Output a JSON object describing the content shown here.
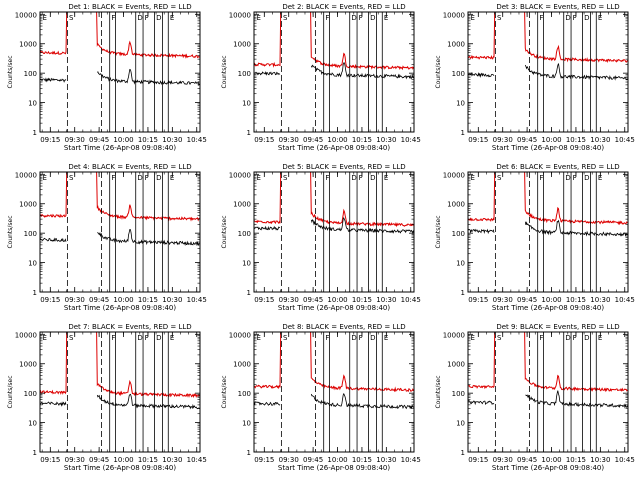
{
  "figure": {
    "x_tick_labels": [
      "09:15",
      "09:30",
      "09:45",
      "10:00",
      "10:15",
      "10:30",
      "10:45"
    ],
    "y_tick_labels": [
      "1",
      "10",
      "100",
      "1000",
      "10000"
    ],
    "xlabel": "Start Time (26-Apr-08 09:08:40)",
    "ylabel": "Counts/sec",
    "flags": [
      "E",
      "S",
      "F",
      "D",
      "F",
      "D",
      "E"
    ]
  },
  "colors": {
    "events": "#000000",
    "lld": "#dd0000",
    "axes": "#000000"
  },
  "chart_data": [
    {
      "type": "line",
      "title": "Det 1: BLACK = Events, RED = LLD",
      "xlabel": "Start Time (26-Apr-08 09:08:40)",
      "ylabel": "Counts/sec",
      "y_scale": "log",
      "ylim": [
        1,
        12000
      ],
      "xlim": [
        "09:08:40",
        "10:47:00"
      ],
      "series": [
        {
          "name": "Events",
          "color": "#000000",
          "baseline": 60,
          "peak_lld": 10000
        },
        {
          "name": "LLD",
          "color": "#dd0000",
          "baseline": 500,
          "peak": 10000
        }
      ]
    },
    {
      "type": "line",
      "title": "Det 2: BLACK = Events, RED = LLD",
      "xlabel": "Start Time (26-Apr-08 09:08:40)",
      "ylabel": "Counts/sec",
      "y_scale": "log",
      "ylim": [
        1,
        12000
      ],
      "xlim": [
        "09:08:40",
        "10:47:00"
      ],
      "series": [
        {
          "name": "Events",
          "color": "#000000",
          "baseline": 100
        },
        {
          "name": "LLD",
          "color": "#dd0000",
          "baseline": 200,
          "peak": 10000
        }
      ]
    },
    {
      "type": "line",
      "title": "Det 3: BLACK = Events, RED = LLD",
      "xlabel": "Start Time (26-Apr-08 09:08:40)",
      "ylabel": "Counts/sec",
      "y_scale": "log",
      "ylim": [
        1,
        12000
      ],
      "xlim": [
        "09:08:40",
        "10:47:00"
      ],
      "series": [
        {
          "name": "Events",
          "color": "#000000",
          "baseline": 90
        },
        {
          "name": "LLD",
          "color": "#dd0000",
          "baseline": 350,
          "peak": 10000
        }
      ]
    },
    {
      "type": "line",
      "title": "Det 4: BLACK = Events, RED = LLD",
      "xlabel": "Start Time (26-Apr-08 09:08:40)",
      "ylabel": "Counts/sec",
      "y_scale": "log",
      "ylim": [
        1,
        12000
      ],
      "xlim": [
        "09:08:40",
        "10:47:00"
      ],
      "series": [
        {
          "name": "Events",
          "color": "#000000",
          "baseline": 60
        },
        {
          "name": "LLD",
          "color": "#dd0000",
          "baseline": 400,
          "peak": 10000
        }
      ]
    },
    {
      "type": "line",
      "title": "Det 5: BLACK = Events, RED = LLD",
      "xlabel": "Start Time (26-Apr-08 09:08:40)",
      "ylabel": "Counts/sec",
      "y_scale": "log",
      "ylim": [
        1,
        12000
      ],
      "xlim": [
        "09:08:40",
        "10:47:00"
      ],
      "series": [
        {
          "name": "Events",
          "color": "#000000",
          "baseline": 150
        },
        {
          "name": "LLD",
          "color": "#dd0000",
          "baseline": 250,
          "peak": 10000
        }
      ]
    },
    {
      "type": "line",
      "title": "Det 6: BLACK = Events, RED = LLD",
      "xlabel": "Start Time (26-Apr-08 09:08:40)",
      "ylabel": "Counts/sec",
      "y_scale": "log",
      "ylim": [
        1,
        12000
      ],
      "xlim": [
        "09:08:40",
        "10:47:00"
      ],
      "series": [
        {
          "name": "Events",
          "color": "#000000",
          "baseline": 120
        },
        {
          "name": "LLD",
          "color": "#dd0000",
          "baseline": 300,
          "peak": 10000
        }
      ]
    },
    {
      "type": "line",
      "title": "Det 7: BLACK = Events, RED = LLD",
      "xlabel": "Start Time (26-Apr-08 09:08:40)",
      "ylabel": "Counts/sec",
      "y_scale": "log",
      "ylim": [
        1,
        12000
      ],
      "xlim": [
        "09:08:40",
        "10:47:00"
      ],
      "series": [
        {
          "name": "Events",
          "color": "#000000",
          "baseline": 45
        },
        {
          "name": "LLD",
          "color": "#dd0000",
          "baseline": 110,
          "peak": 10000
        }
      ]
    },
    {
      "type": "line",
      "title": "Det 8: BLACK = Events, RED = LLD",
      "xlabel": "Start Time (26-Apr-08 09:08:40)",
      "ylabel": "Counts/sec",
      "y_scale": "log",
      "ylim": [
        1,
        12000
      ],
      "xlim": [
        "09:08:40",
        "10:47:00"
      ],
      "series": [
        {
          "name": "Events",
          "color": "#000000",
          "baseline": 45
        },
        {
          "name": "LLD",
          "color": "#dd0000",
          "baseline": 170,
          "peak": 10000
        }
      ]
    },
    {
      "type": "line",
      "title": "Det 9: BLACK = Events, RED = LLD",
      "xlabel": "Start Time (26-Apr-08 09:08:40)",
      "ylabel": "Counts/sec",
      "y_scale": "log",
      "ylim": [
        1,
        12000
      ],
      "xlim": [
        "09:08:40",
        "10:47:00"
      ],
      "series": [
        {
          "name": "Events",
          "color": "#000000",
          "baseline": 50
        },
        {
          "name": "LLD",
          "color": "#dd0000",
          "baseline": 170,
          "peak": 10000
        }
      ]
    }
  ]
}
